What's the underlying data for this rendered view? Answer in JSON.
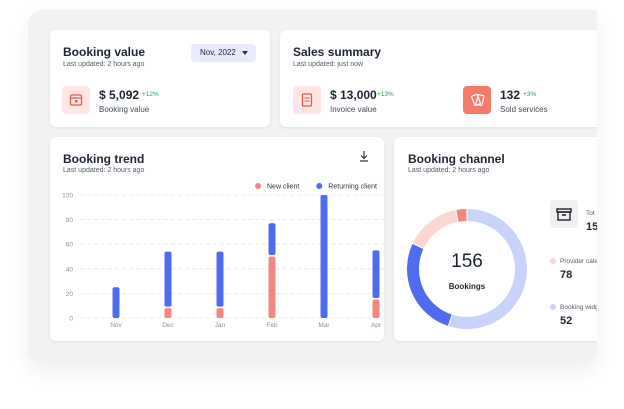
{
  "booking_value": {
    "title": "Booking value",
    "subtitle": "Last updated: 2 hours ago",
    "dropdown": "Nov, 2022",
    "amount": "$ 5,092",
    "change": "+12%",
    "label": "Booking value"
  },
  "sales_summary": {
    "title": "Sales summary",
    "subtitle": "Last updated: just now",
    "items": [
      {
        "amount": "$ 13,000",
        "change": "+13%",
        "label": "Invoice value"
      },
      {
        "amount": "132",
        "change": "+3%",
        "label": "Sold services"
      }
    ]
  },
  "chart_data": [
    {
      "type": "bar",
      "stacked": true,
      "title": "Booking trend",
      "subtitle": "Last updated: 2 hours ago",
      "categories": [
        "Nov",
        "Dec",
        "Jan",
        "Feb",
        "Mar",
        "Apr"
      ],
      "series": [
        {
          "name": "New client",
          "color": "#f2877d",
          "values": [
            0,
            8,
            8,
            50,
            0,
            15
          ]
        },
        {
          "name": "Returning client",
          "color": "#4f6cf0",
          "values": [
            25,
            46,
            46,
            27,
            100,
            40
          ]
        }
      ],
      "ylim": [
        0,
        100
      ],
      "yticks": [
        0,
        20,
        40,
        60,
        80,
        100
      ],
      "grid": true
    },
    {
      "type": "donut",
      "title": "Booking channel",
      "subtitle": "Last updated: 2 hours ago",
      "center_value": 156,
      "center_label": "Bookings",
      "values": [
        55,
        27,
        15,
        3
      ],
      "colors": [
        "#c9d3fa",
        "#4f6cf0",
        "#fbd6d2",
        "#f2877d"
      ],
      "legend": [
        {
          "label": "Tot",
          "value": 15
        },
        {
          "label": "Provider cale",
          "value": 78,
          "color": "#fbd6d2"
        },
        {
          "label": "Booking widg",
          "value": 52,
          "color": "#c9d3fa"
        }
      ]
    }
  ]
}
